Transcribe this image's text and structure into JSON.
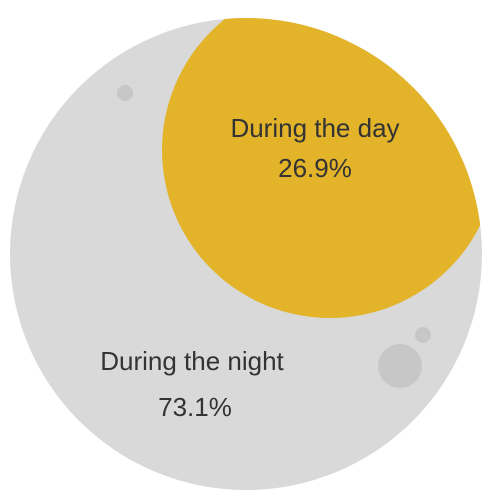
{
  "chart_data": {
    "type": "pie",
    "slices": [
      {
        "label": "During the night",
        "value": 73.1,
        "value_label": "73.1%",
        "color": "#d9d9d9"
      },
      {
        "label": "During the day",
        "value": 26.9,
        "value_label": "26.9%",
        "color": "#e3b42a"
      }
    ],
    "legend": "none",
    "decor_color": "#c7c7c7"
  }
}
